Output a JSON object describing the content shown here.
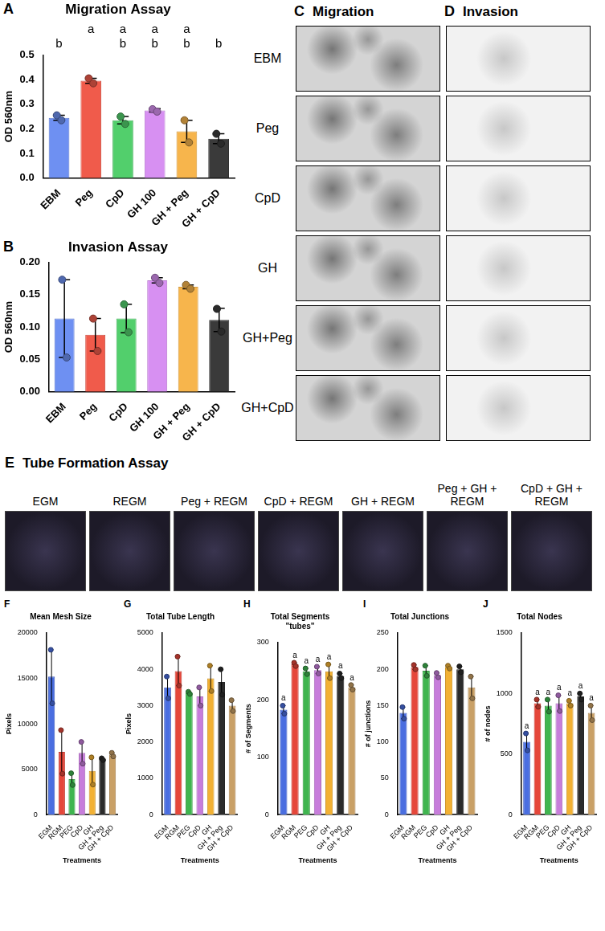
{
  "chart_data": [
    {
      "type": "bar",
      "panel": "A",
      "title": "Migration Assay",
      "y_label": "OD 560nm",
      "categories": [
        "EBM",
        "Peg",
        "CpD",
        "GH 100",
        "GH + Peg",
        "GH + CpD"
      ],
      "values": [
        0.245,
        0.395,
        0.235,
        0.275,
        0.19,
        0.16
      ],
      "errors": [
        0.01,
        0.01,
        0.015,
        0.007,
        0.045,
        0.02
      ],
      "points": [
        [
          0.255,
          0.235
        ],
        [
          0.405,
          0.385
        ],
        [
          0.25,
          0.22
        ],
        [
          0.28,
          0.27
        ],
        [
          0.235,
          0.145
        ],
        [
          0.18,
          0.14
        ]
      ],
      "letters": [
        [
          "b"
        ],
        [
          "a"
        ],
        [
          "a",
          "b"
        ],
        [
          "a",
          "b"
        ],
        [
          "a",
          "b"
        ],
        [
          "b"
        ]
      ],
      "colors": [
        "#6e90f2",
        "#f05b4b",
        "#52cf6c",
        "#d790f2",
        "#f7b54c",
        "#3a3a3a"
      ],
      "ylim": [
        0,
        0.5
      ],
      "yticks": [
        {
          "value": 0,
          "label": "0.0"
        },
        0.1,
        0.2,
        0.3,
        0.4,
        0.5
      ],
      "grid": false
    },
    {
      "type": "bar",
      "panel": "B",
      "title": "Invasion Assay",
      "y_label": "OD 560nm",
      "categories": [
        "EBM",
        "Peg",
        "CpD",
        "GH 100",
        "GH + Peg",
        "GH + CpD"
      ],
      "values": [
        0.113,
        0.088,
        0.113,
        0.172,
        0.162,
        0.111
      ],
      "errors": [
        0.06,
        0.025,
        0.022,
        0.004,
        0.003,
        0.018
      ],
      "points": [
        [
          0.173,
          0.053
        ],
        [
          0.113,
          0.063
        ],
        [
          0.135,
          0.092
        ],
        [
          0.176,
          0.168
        ],
        [
          0.165,
          0.159
        ],
        [
          0.128,
          0.093
        ]
      ],
      "colors": [
        "#6e90f2",
        "#f05b4b",
        "#52cf6c",
        "#d790f2",
        "#f7b54c",
        "#3a3a3a"
      ],
      "ylim": [
        0,
        0.2
      ],
      "yticks": [
        {
          "value": 0,
          "label": "0.00"
        },
        {
          "value": 0.05,
          "label": "0.05"
        },
        {
          "value": 0.1,
          "label": "0.10"
        },
        {
          "value": 0.15,
          "label": "0.15"
        },
        {
          "value": 0.2,
          "label": "0.20"
        }
      ],
      "grid": false
    },
    {
      "type": "bar",
      "panel": "F",
      "title": "Mean Mesh Size",
      "y_label": "Pixels",
      "x_label": "Treatments",
      "categories": [
        "EGM",
        "RGM",
        "PEG",
        "CpD",
        "GH",
        "GH + Peg",
        "GH + CpD"
      ],
      "values": [
        15200,
        6900,
        3900,
        6800,
        4800,
        6100,
        6600
      ],
      "errors": [
        2950,
        2400,
        650,
        1200,
        1500,
        100,
        200
      ],
      "points": [
        [
          18150,
          12250
        ],
        [
          9300,
          4500
        ],
        [
          4550,
          3250
        ],
        [
          8000,
          5600
        ],
        [
          6300,
          3300
        ],
        [
          6200,
          6000
        ],
        [
          6800,
          6400
        ]
      ],
      "colors": [
        "#4a6ee0",
        "#e5473a",
        "#3fb54f",
        "#c77ddb",
        "#f2b134",
        "#2b2b2b",
        "#c9a066"
      ],
      "ylim": [
        0,
        20000
      ],
      "yticks": [
        0,
        5000,
        10000,
        15000,
        20000
      ],
      "grid": false
    },
    {
      "type": "bar",
      "panel": "G",
      "title": "Total Tube Length",
      "y_label": "Pixels",
      "x_label": "Treatments",
      "categories": [
        "EGM",
        "RGM",
        "PEG",
        "CpD",
        "GH",
        "GH + Peg",
        "GH + CpD"
      ],
      "values": [
        3500,
        3950,
        3350,
        3250,
        3750,
        3650,
        3000
      ],
      "errors": [
        300,
        400,
        30,
        250,
        350,
        350,
        150
      ],
      "points": [
        [
          3800,
          3200
        ],
        [
          4350,
          3550
        ],
        [
          3380,
          3320
        ],
        [
          3500,
          3000
        ],
        [
          4100,
          3400
        ],
        [
          4000,
          3300
        ],
        [
          3150,
          2850
        ]
      ],
      "colors": [
        "#4a6ee0",
        "#e5473a",
        "#3fb54f",
        "#c77ddb",
        "#f2b134",
        "#2b2b2b",
        "#c9a066"
      ],
      "ylim": [
        0,
        5000
      ],
      "yticks": [
        0,
        1000,
        2000,
        3000,
        4000,
        5000
      ],
      "grid": false
    },
    {
      "type": "bar",
      "panel": "H",
      "title": "Total Segments \"tubes\"",
      "y_label": "# of Segments",
      "x_label": "Treatments",
      "categories": [
        "EGM",
        "RGM",
        "PEG",
        "CpD",
        "GH",
        "GH + Peg",
        "GH + CpD"
      ],
      "values": [
        183,
        262,
        250,
        252,
        250,
        242,
        222
      ],
      "errors": [
        7,
        3,
        5,
        6,
        12,
        4,
        4
      ],
      "points": [
        [
          190,
          176
        ],
        [
          265,
          259
        ],
        [
          255,
          245
        ],
        [
          258,
          246
        ],
        [
          262,
          238
        ],
        [
          246,
          238
        ],
        [
          226,
          218
        ]
      ],
      "letters": [
        [
          "a"
        ],
        [
          "a"
        ],
        [
          "a"
        ],
        [
          "a"
        ],
        [
          "a"
        ],
        [
          "a"
        ],
        [
          "a"
        ]
      ],
      "colors": [
        "#4a6ee0",
        "#e5473a",
        "#3fb54f",
        "#c77ddb",
        "#f2b134",
        "#2b2b2b",
        "#c9a066"
      ],
      "ylim": [
        0,
        300
      ],
      "yticks": [
        0,
        100,
        200,
        300
      ],
      "grid": false
    },
    {
      "type": "bar",
      "panel": "I",
      "title": "Total Junctions",
      "y_label": "# of junctions",
      "x_label": "Treatments",
      "categories": [
        "EGM",
        "RGM",
        "PEG",
        "CpD",
        "GH",
        "GH + Peg",
        "GH + CpD"
      ],
      "values": [
        140,
        203,
        198,
        192,
        203,
        200,
        175
      ],
      "errors": [
        8,
        3,
        7,
        3,
        2,
        4,
        15
      ],
      "points": [
        [
          148,
          132
        ],
        [
          206,
          200
        ],
        [
          205,
          191
        ],
        [
          195,
          189
        ],
        [
          205,
          201
        ],
        [
          204,
          196
        ],
        [
          190,
          160
        ]
      ],
      "colors": [
        "#4a6ee0",
        "#e5473a",
        "#3fb54f",
        "#c77ddb",
        "#f2b134",
        "#2b2b2b",
        "#c9a066"
      ],
      "ylim": [
        0,
        250
      ],
      "yticks": [
        0,
        50,
        100,
        150,
        200,
        250
      ],
      "grid": false
    },
    {
      "type": "bar",
      "panel": "J",
      "title": "Total Nodes",
      "y_label": "# of nodes",
      "x_label": "Treatments",
      "categories": [
        "EGM",
        "RGM",
        "PEG",
        "CpD",
        "GH",
        "GH + Peg",
        "GH + CpD"
      ],
      "values": [
        600,
        920,
        900,
        920,
        920,
        975,
        840
      ],
      "errors": [
        70,
        30,
        50,
        65,
        20,
        25,
        60
      ],
      "points": [
        [
          670,
          530
        ],
        [
          950,
          890
        ],
        [
          950,
          850
        ],
        [
          985,
          855
        ],
        [
          940,
          900
        ],
        [
          1000,
          950
        ],
        [
          900,
          780
        ]
      ],
      "letters": [
        [
          "a"
        ],
        [
          "a"
        ],
        [
          "a"
        ],
        [
          "a"
        ],
        [
          "a"
        ],
        [
          "a"
        ],
        [
          "a"
        ]
      ],
      "colors": [
        "#4a6ee0",
        "#e5473a",
        "#3fb54f",
        "#c77ddb",
        "#f2b134",
        "#2b2b2b",
        "#c9a066"
      ],
      "ylim": [
        0,
        1500
      ],
      "yticks": [
        0,
        500,
        1000,
        1500
      ],
      "grid": false
    }
  ],
  "image_panels": [
    {
      "panel": "C",
      "title": "Migration",
      "rows": [
        "EBM",
        "Peg",
        "CpD",
        "GH",
        "GH+Peg",
        "GH+CpD"
      ]
    },
    {
      "panel": "D",
      "title": "Invasion",
      "rows": [
        "EBM",
        "Peg",
        "CpD",
        "GH",
        "GH+Peg",
        "GH+CpD"
      ]
    },
    {
      "panel": "E",
      "title": "Tube Formation Assay",
      "columns": [
        "EGM",
        "REGM",
        "Peg + REGM",
        "CpD + REGM",
        "GH + REGM",
        "Peg + GH + REGM",
        "CpD + GH + REGM"
      ]
    }
  ]
}
